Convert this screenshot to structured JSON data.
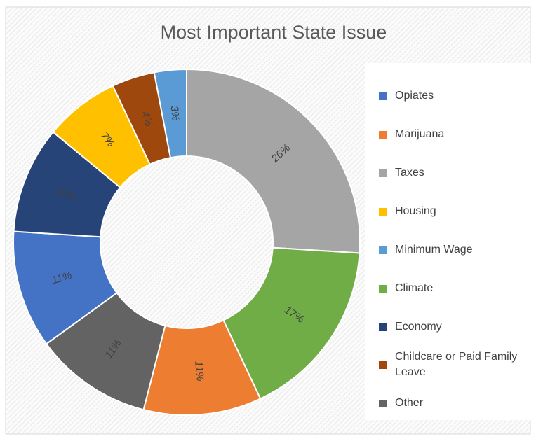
{
  "chart_data": {
    "type": "donut",
    "title": "Most Important State Issue",
    "categories": [
      "Opiates",
      "Marijuana",
      "Taxes",
      "Housing",
      "Minimum Wage",
      "Climate",
      "Economy",
      "Childcare or Paid Family Leave",
      "Other"
    ],
    "values": [
      11,
      11,
      26,
      7,
      3,
      17,
      10,
      4,
      11
    ],
    "value_labels": [
      "11%",
      "11%",
      "26%",
      "7%",
      "3%",
      "17%",
      "10%",
      "4%",
      "11%"
    ],
    "colors": [
      "#4472c4",
      "#ed7d31",
      "#a5a5a5",
      "#ffc000",
      "#5b9bd5",
      "#70ad47",
      "#264478",
      "#9e480e",
      "#636363"
    ],
    "legend": "right"
  }
}
